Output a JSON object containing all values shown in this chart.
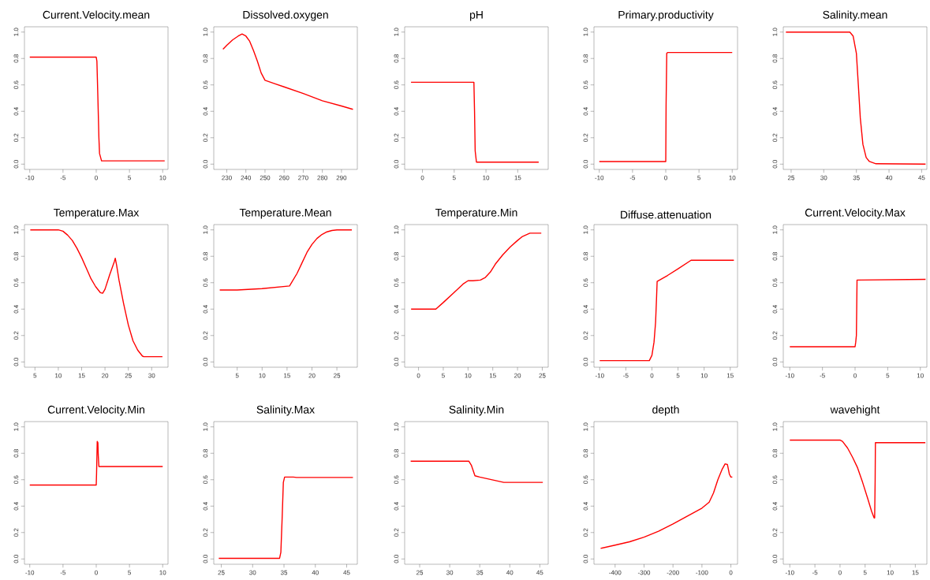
{
  "chart_data": [
    {
      "type": "line",
      "title": "Current.Velocity.mean",
      "color": "#ff0000",
      "x": [
        -10,
        0,
        0.1,
        0.25,
        0.4,
        0.5,
        0.8,
        10.3
      ],
      "values": [
        0.81,
        0.81,
        0.78,
        0.5,
        0.2,
        0.08,
        0.025,
        0.025
      ],
      "xlim": [
        -10.8,
        10.8
      ],
      "xticks": [
        -10,
        -5,
        0,
        5,
        10
      ],
      "ylim": [
        -0.04,
        1.04
      ],
      "yticks": [
        {
          "value": 0,
          "label": "0.0"
        },
        {
          "value": 0.2,
          "label": "0.2"
        },
        {
          "value": 0.4,
          "label": "0.4"
        },
        {
          "value": 0.6,
          "label": "0.6"
        },
        {
          "value": 0.8,
          "label": "0.8"
        },
        {
          "value": 1,
          "label": "1.0"
        }
      ]
    },
    {
      "type": "line",
      "title": "Dissolved.oxygen",
      "color": "#ff0000",
      "x": [
        228,
        230,
        233,
        236,
        238,
        240,
        242,
        244,
        246,
        248,
        250,
        255,
        260,
        270,
        280,
        290,
        296
      ],
      "values": [
        0.87,
        0.9,
        0.94,
        0.97,
        0.985,
        0.97,
        0.93,
        0.86,
        0.78,
        0.69,
        0.635,
        0.61,
        0.585,
        0.535,
        0.48,
        0.44,
        0.415
      ],
      "xlim": [
        223.2,
        298.3
      ],
      "xticks": [
        230,
        240,
        250,
        260,
        270,
        280,
        290
      ],
      "ylim": [
        -0.04,
        1.04
      ],
      "yticks": [
        {
          "value": 0,
          "label": "0.0"
        },
        {
          "value": 0.2,
          "label": "0.2"
        },
        {
          "value": 0.4,
          "label": "0.4"
        },
        {
          "value": 0.6,
          "label": "0.6"
        },
        {
          "value": 0.8,
          "label": "0.8"
        },
        {
          "value": 1,
          "label": "1.0"
        }
      ]
    },
    {
      "type": "line",
      "title": "pH",
      "color": "#ff0000",
      "x": [
        -1.8,
        8.1,
        8.2,
        8.3,
        8.5,
        18.3
      ],
      "values": [
        0.62,
        0.62,
        0.4,
        0.1,
        0.015,
        0.015
      ],
      "xlim": [
        -2.8,
        19.8
      ],
      "xticks": [
        0,
        5,
        10,
        15
      ],
      "ylim": [
        -0.04,
        1.04
      ],
      "yticks": [
        {
          "value": 0,
          "label": "0.0"
        },
        {
          "value": 0.2,
          "label": "0.2"
        },
        {
          "value": 0.4,
          "label": "0.4"
        },
        {
          "value": 0.6,
          "label": "0.6"
        },
        {
          "value": 0.8,
          "label": "0.8"
        },
        {
          "value": 1,
          "label": "1.0"
        }
      ]
    },
    {
      "type": "line",
      "title": "Primary.productivity",
      "color": "#ff0000",
      "x": [
        -10,
        0,
        0.05,
        0.15,
        0.3,
        10
      ],
      "values": [
        0.02,
        0.02,
        0.45,
        0.84,
        0.845,
        0.845
      ],
      "xlim": [
        -10.8,
        10.8
      ],
      "xticks": [
        -10,
        -5,
        0,
        5,
        10
      ],
      "ylim": [
        -0.04,
        1.04
      ],
      "yticks": [
        {
          "value": 0,
          "label": "0.0"
        },
        {
          "value": 0.2,
          "label": "0.2"
        },
        {
          "value": 0.4,
          "label": "0.4"
        },
        {
          "value": 0.6,
          "label": "0.6"
        },
        {
          "value": 0.8,
          "label": "0.8"
        },
        {
          "value": 1,
          "label": "1.0"
        }
      ]
    },
    {
      "type": "line",
      "title": "Salinity.mean",
      "color": "#ff0000",
      "x": [
        24.2,
        34,
        34.5,
        35,
        35.3,
        35.6,
        36,
        36.5,
        37,
        38,
        45.6
      ],
      "values": [
        1,
        1,
        0.97,
        0.84,
        0.6,
        0.35,
        0.15,
        0.05,
        0.02,
        0.003,
        0
      ],
      "xlim": [
        23.8,
        45.8
      ],
      "xticks": [
        25,
        30,
        35,
        40,
        45
      ],
      "ylim": [
        -0.04,
        1.04
      ],
      "yticks": [
        {
          "value": 0,
          "label": "0.0"
        },
        {
          "value": 0.2,
          "label": "0.2"
        },
        {
          "value": 0.4,
          "label": "0.4"
        },
        {
          "value": 0.6,
          "label": "0.6"
        },
        {
          "value": 0.8,
          "label": "0.8"
        },
        {
          "value": 1,
          "label": "1.0"
        }
      ]
    },
    {
      "type": "line",
      "title": "Temperature.Max",
      "color": "#ff0000",
      "x": [
        4,
        10,
        11,
        12,
        13,
        14,
        15,
        16,
        17,
        18,
        19,
        19.5,
        20,
        21,
        22,
        22.2,
        22.5,
        23,
        24,
        25,
        26,
        27,
        28,
        28.3,
        32.3
      ],
      "values": [
        1,
        1,
        0.99,
        0.96,
        0.92,
        0.86,
        0.79,
        0.71,
        0.63,
        0.57,
        0.525,
        0.52,
        0.55,
        0.66,
        0.76,
        0.785,
        0.73,
        0.62,
        0.44,
        0.28,
        0.16,
        0.09,
        0.045,
        0.04,
        0.04
      ],
      "xlim": [
        2.75,
        33.5
      ],
      "xticks": [
        5,
        10,
        15,
        20,
        25,
        30
      ],
      "ylim": [
        -0.04,
        1.04
      ],
      "yticks": [
        {
          "value": 0,
          "label": "0.0"
        },
        {
          "value": 0.2,
          "label": "0.2"
        },
        {
          "value": 0.4,
          "label": "0.4"
        },
        {
          "value": 0.6,
          "label": "0.6"
        },
        {
          "value": 0.8,
          "label": "0.8"
        },
        {
          "value": 1,
          "label": "1.0"
        }
      ]
    },
    {
      "type": "line",
      "title": "Temperature.Mean",
      "color": "#ff0000",
      "x": [
        1.5,
        5,
        10,
        15.5,
        17,
        18,
        19,
        20,
        21,
        22,
        23,
        24,
        25,
        28
      ],
      "values": [
        0.545,
        0.545,
        0.555,
        0.575,
        0.67,
        0.75,
        0.83,
        0.89,
        0.935,
        0.965,
        0.985,
        0.995,
        1,
        1
      ],
      "xlim": [
        0.3,
        29.1
      ],
      "xticks": [
        5,
        10,
        15,
        20,
        25
      ],
      "ylim": [
        -0.04,
        1.04
      ],
      "yticks": [
        {
          "value": 0,
          "label": "0.0"
        },
        {
          "value": 0.2,
          "label": "0.2"
        },
        {
          "value": 0.4,
          "label": "0.4"
        },
        {
          "value": 0.6,
          "label": "0.6"
        },
        {
          "value": 0.8,
          "label": "0.8"
        },
        {
          "value": 1,
          "label": "1.0"
        }
      ]
    },
    {
      "type": "line",
      "title": "Temperature.Min",
      "color": "#ff0000",
      "x": [
        -1.5,
        3.5,
        5,
        7,
        9,
        10,
        11,
        12.5,
        13.5,
        14.5,
        15.5,
        17,
        18.5,
        20,
        21,
        22.5,
        24.8
      ],
      "values": [
        0.4,
        0.4,
        0.45,
        0.52,
        0.59,
        0.615,
        0.615,
        0.62,
        0.64,
        0.68,
        0.74,
        0.81,
        0.87,
        0.92,
        0.95,
        0.975,
        0.975
      ],
      "xlim": [
        -2.8,
        26.2
      ],
      "xticks": [
        0,
        5,
        10,
        15,
        20,
        25
      ],
      "ylim": [
        -0.04,
        1.04
      ],
      "yticks": [
        {
          "value": 0,
          "label": "0.0"
        },
        {
          "value": 0.2,
          "label": "0.2"
        },
        {
          "value": 0.4,
          "label": "0.4"
        },
        {
          "value": 0.6,
          "label": "0.6"
        },
        {
          "value": 0.8,
          "label": "0.8"
        },
        {
          "value": 1,
          "label": "1.0"
        }
      ]
    },
    {
      "type": "line",
      "title": "Diffuse.attenuation",
      "color": "#ff0000",
      "x": [
        -10,
        -0.5,
        0,
        0.4,
        0.7,
        0.9,
        1,
        3,
        5,
        7.5,
        15.7
      ],
      "values": [
        0.01,
        0.01,
        0.05,
        0.15,
        0.3,
        0.5,
        0.61,
        0.655,
        0.705,
        0.77,
        0.77
      ],
      "xlim": [
        -11.1,
        16.4
      ],
      "xticks": [
        -10,
        -5,
        0,
        5,
        10,
        15
      ],
      "ylim": [
        -0.04,
        1.04
      ],
      "yticks": [
        {
          "value": 0,
          "label": "0.0"
        },
        {
          "value": 0.2,
          "label": "0.2"
        },
        {
          "value": 0.4,
          "label": "0.4"
        },
        {
          "value": 0.6,
          "label": "0.6"
        },
        {
          "value": 0.8,
          "label": "0.8"
        },
        {
          "value": 1,
          "label": "1.0"
        }
      ]
    },
    {
      "type": "line",
      "title": "Current.Velocity.Max",
      "color": "#ff0000",
      "x": [
        -10,
        0,
        0.1,
        0.2,
        0.25,
        0.3,
        10.8
      ],
      "values": [
        0.115,
        0.115,
        0.15,
        0.2,
        0.4,
        0.62,
        0.625
      ],
      "xlim": [
        -11,
        11
      ],
      "xticks": [
        -10,
        -5,
        0,
        5,
        10
      ],
      "ylim": [
        -0.04,
        1.04
      ],
      "yticks": [
        {
          "value": 0,
          "label": "0.0"
        },
        {
          "value": 0.2,
          "label": "0.2"
        },
        {
          "value": 0.4,
          "label": "0.4"
        },
        {
          "value": 0.6,
          "label": "0.6"
        },
        {
          "value": 0.8,
          "label": "0.8"
        },
        {
          "value": 1,
          "label": "1.0"
        }
      ]
    },
    {
      "type": "line",
      "title": "Current.Velocity.Min",
      "color": "#ff0000",
      "x": [
        -10,
        0,
        0.05,
        0.15,
        0.25,
        0.3,
        0.4,
        10
      ],
      "values": [
        0.56,
        0.56,
        0.65,
        0.89,
        0.88,
        0.79,
        0.7,
        0.7
      ],
      "xlim": [
        -10.8,
        10.8
      ],
      "xticks": [
        -10,
        -5,
        0,
        5,
        10
      ],
      "ylim": [
        -0.04,
        1.04
      ],
      "yticks": [
        {
          "value": 0,
          "label": "0.0"
        },
        {
          "value": 0.2,
          "label": "0.2"
        },
        {
          "value": 0.4,
          "label": "0.4"
        },
        {
          "value": 0.6,
          "label": "0.6"
        },
        {
          "value": 0.8,
          "label": "0.8"
        },
        {
          "value": 1,
          "label": "1.0"
        }
      ]
    },
    {
      "type": "line",
      "title": "Salinity.Max",
      "color": "#ff0000",
      "x": [
        24.6,
        34.3,
        34.5,
        34.7,
        34.9,
        35.1,
        36.5,
        37,
        46
      ],
      "values": [
        0.005,
        0.005,
        0.05,
        0.3,
        0.58,
        0.62,
        0.62,
        0.617,
        0.617
      ],
      "xlim": [
        23.8,
        46.7
      ],
      "xticks": [
        25,
        30,
        35,
        40,
        45
      ],
      "ylim": [
        -0.04,
        1.04
      ],
      "yticks": [
        {
          "value": 0,
          "label": "0.0"
        },
        {
          "value": 0.2,
          "label": "0.2"
        },
        {
          "value": 0.4,
          "label": "0.4"
        },
        {
          "value": 0.6,
          "label": "0.6"
        },
        {
          "value": 0.8,
          "label": "0.8"
        },
        {
          "value": 1,
          "label": "1.0"
        }
      ]
    },
    {
      "type": "line",
      "title": "Salinity.Min",
      "color": "#ff0000",
      "x": [
        23.5,
        33.2,
        33.6,
        34.2,
        35,
        37,
        39,
        45.5
      ],
      "values": [
        0.74,
        0.74,
        0.71,
        0.63,
        0.62,
        0.6,
        0.58,
        0.58
      ],
      "xlim": [
        22.5,
        46.4
      ],
      "xticks": [
        25,
        30,
        35,
        40,
        45
      ],
      "ylim": [
        -0.04,
        1.04
      ],
      "yticks": [
        {
          "value": 0,
          "label": "0.0"
        },
        {
          "value": 0.2,
          "label": "0.2"
        },
        {
          "value": 0.4,
          "label": "0.4"
        },
        {
          "value": 0.6,
          "label": "0.6"
        },
        {
          "value": 0.8,
          "label": "0.8"
        },
        {
          "value": 1,
          "label": "1.0"
        }
      ]
    },
    {
      "type": "line",
      "title": "depth",
      "color": "#ff0000",
      "x": [
        -450,
        -400,
        -350,
        -300,
        -250,
        -200,
        -150,
        -100,
        -75,
        -60,
        -45,
        -30,
        -20,
        -12,
        -5,
        0,
        5
      ],
      "values": [
        0.08,
        0.105,
        0.13,
        0.165,
        0.21,
        0.265,
        0.325,
        0.385,
        0.43,
        0.5,
        0.6,
        0.68,
        0.72,
        0.715,
        0.64,
        0.62,
        0.62
      ],
      "xlim": [
        -473,
        23
      ],
      "xticks": [
        -400,
        -300,
        -200,
        -100,
        0
      ],
      "ylim": [
        -0.04,
        1.04
      ],
      "yticks": [
        {
          "value": 0,
          "label": "0.0"
        },
        {
          "value": 0.2,
          "label": "0.2"
        },
        {
          "value": 0.4,
          "label": "0.4"
        },
        {
          "value": 0.6,
          "label": "0.6"
        },
        {
          "value": 0.8,
          "label": "0.8"
        },
        {
          "value": 1,
          "label": "1.0"
        }
      ]
    },
    {
      "type": "line",
      "title": "wavehight",
      "color": "#ff0000",
      "x": [
        -10,
        0,
        0.5,
        1.5,
        2.5,
        3.5,
        4.5,
        5.5,
        6.3,
        6.8,
        6.9,
        7,
        7.05,
        17
      ],
      "values": [
        0.9,
        0.9,
        0.89,
        0.84,
        0.77,
        0.69,
        0.58,
        0.46,
        0.36,
        0.31,
        0.31,
        0.6,
        0.88,
        0.88
      ],
      "xlim": [
        -11.3,
        17.3
      ],
      "xticks": [
        -10,
        -5,
        0,
        5,
        10,
        15
      ],
      "ylim": [
        -0.04,
        1.04
      ],
      "yticks": [
        {
          "value": 0,
          "label": "0.0"
        },
        {
          "value": 0.2,
          "label": "0.2"
        },
        {
          "value": 0.4,
          "label": "0.4"
        },
        {
          "value": 0.6,
          "label": "0.6"
        },
        {
          "value": 0.8,
          "label": "0.8"
        },
        {
          "value": 1,
          "label": "1.0"
        }
      ]
    }
  ]
}
